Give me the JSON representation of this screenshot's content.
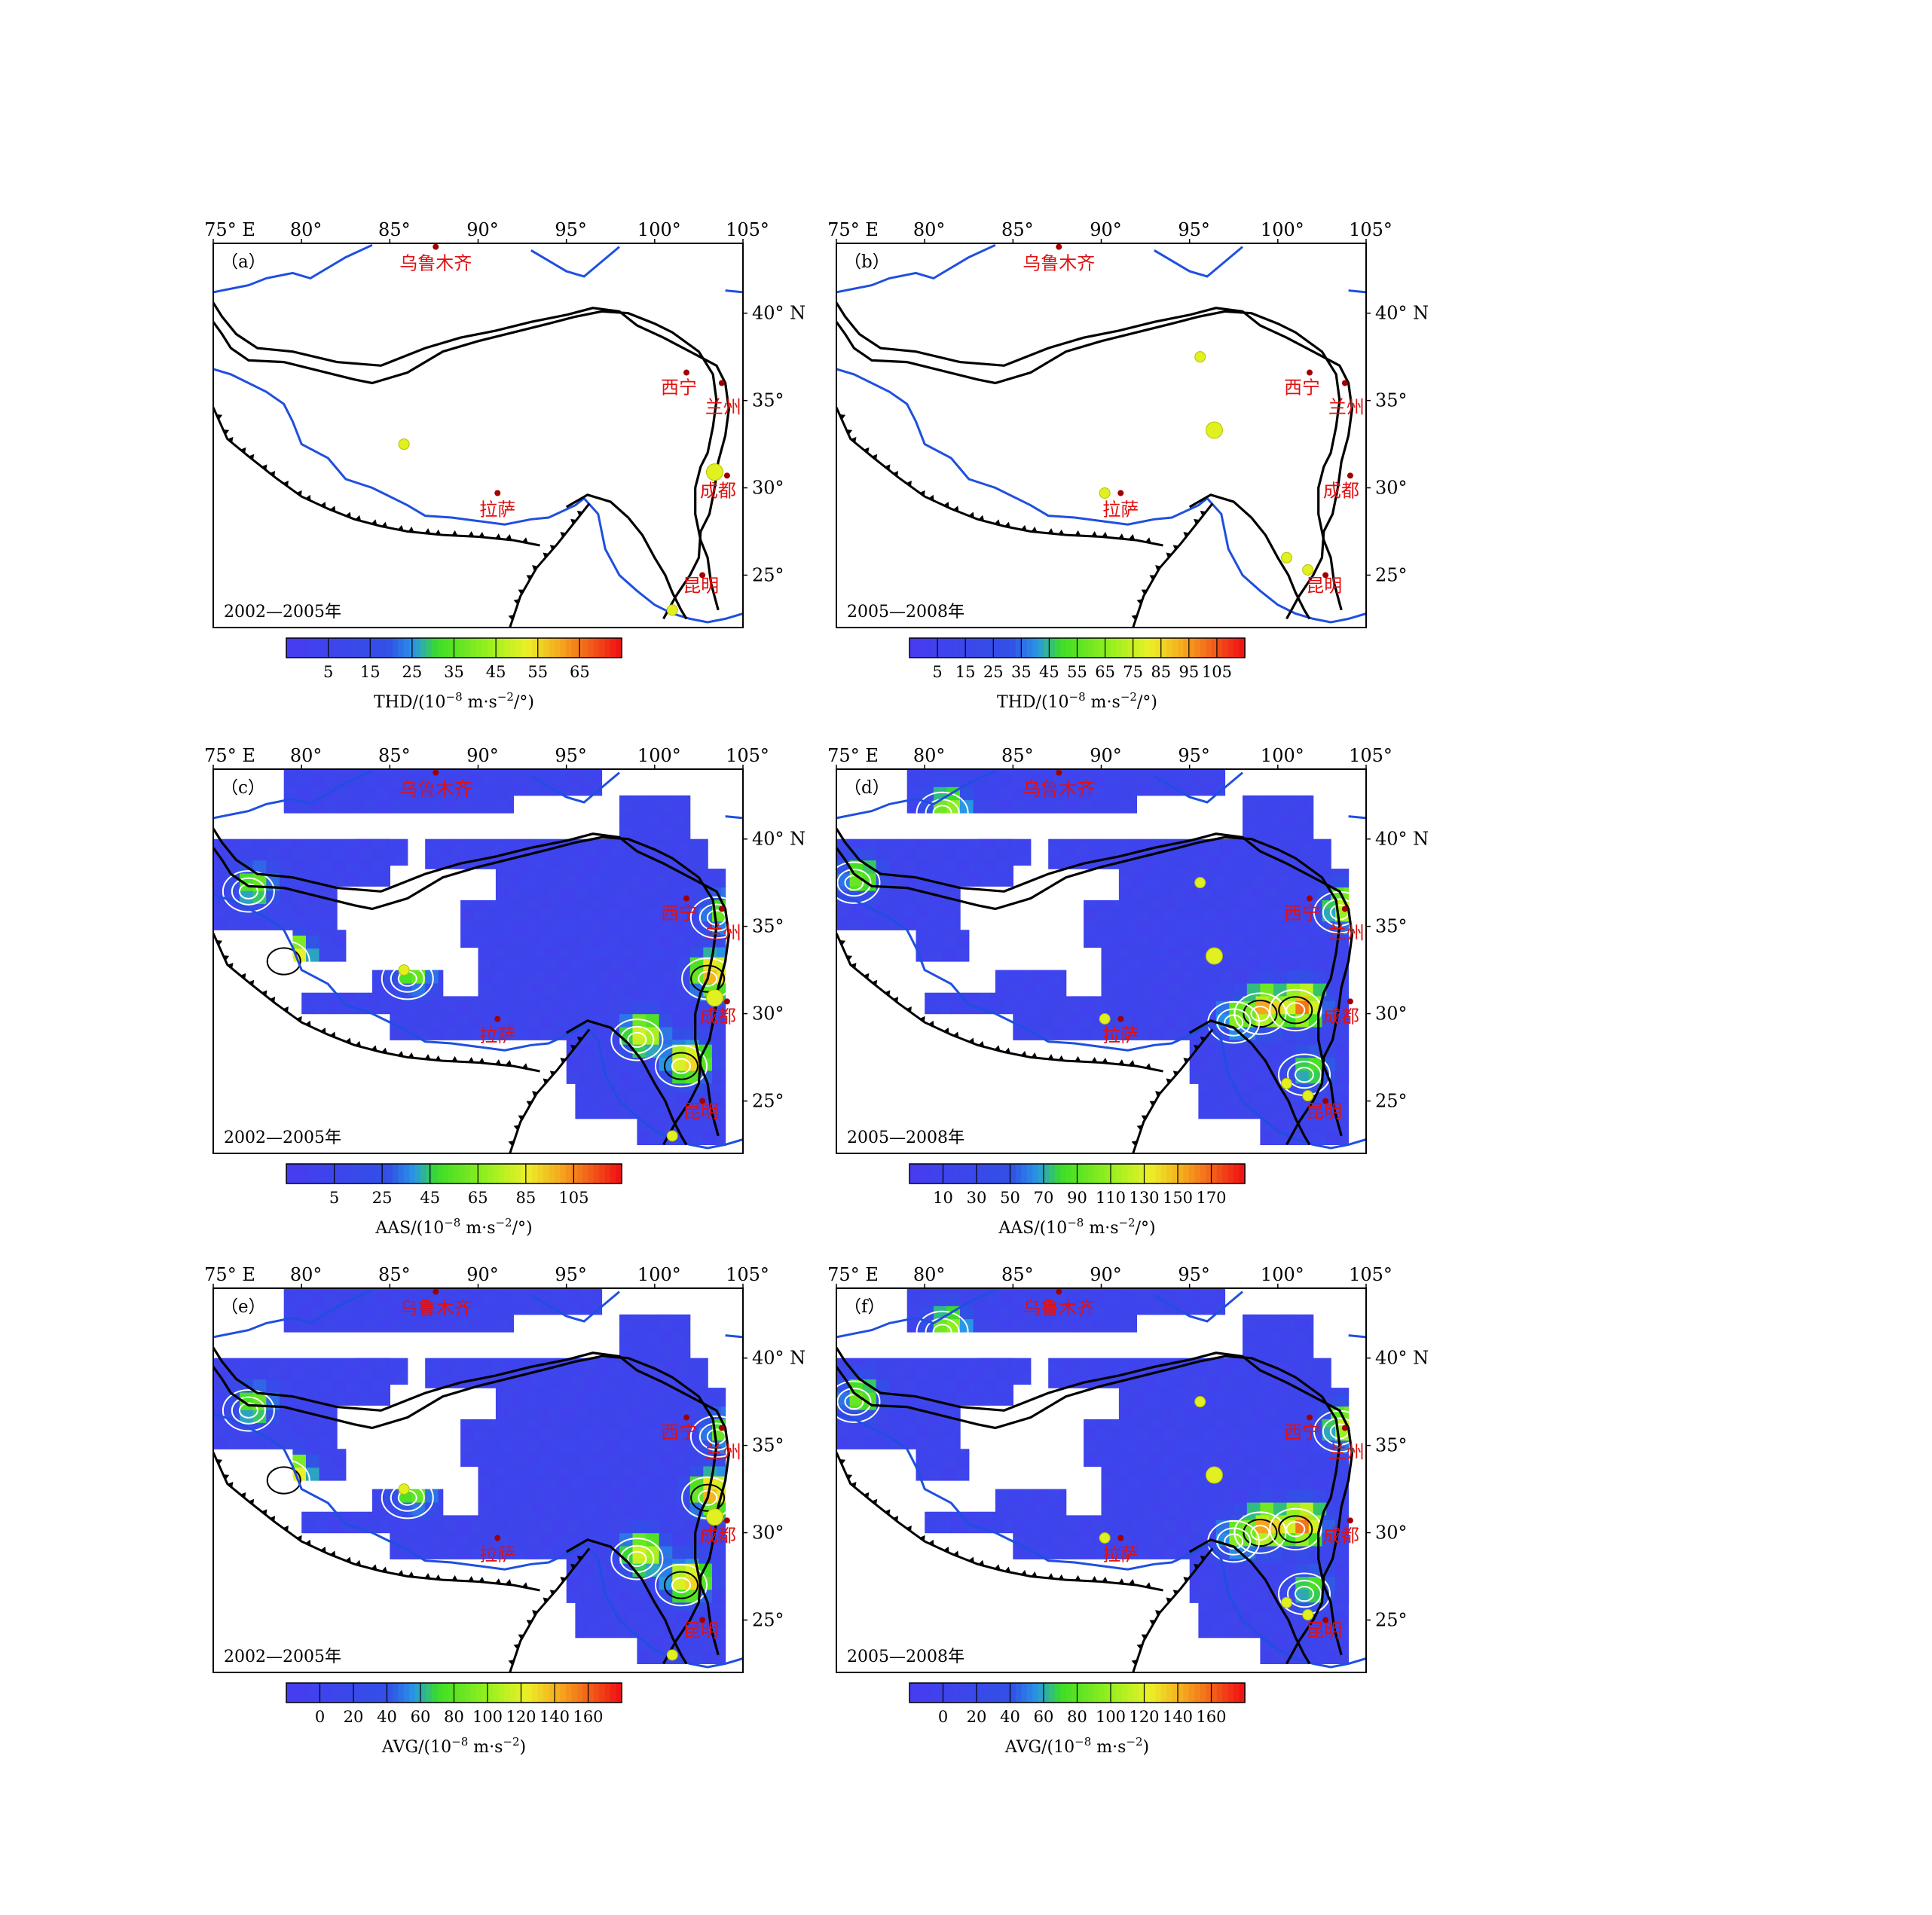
{
  "figure": {
    "lon_ticks": [
      "75° E",
      "80°",
      "85°",
      "90°",
      "95°",
      "100°",
      "105°"
    ],
    "lat_ticks": [
      "40° N",
      "35°",
      "30°",
      "25°"
    ],
    "colors": {
      "frame": "#000000",
      "river": "#1f4fe0",
      "fault": "#000000",
      "city_label": "#e01010",
      "city_dot": "#a00000",
      "station": "#e0f020",
      "grid_blue": "#3c4fe8",
      "grid_green": "#40d010",
      "grid_yellow": "#e8f030",
      "grid_red": "#f03010",
      "contour": "#ffffff"
    },
    "cities": [
      {
        "name": "乌鲁木齐",
        "lon": 87.6,
        "lat": 43.8
      },
      {
        "name": "西宁",
        "lon": 101.8,
        "lat": 36.6
      },
      {
        "name": "兰州",
        "lon": 103.8,
        "lat": 36.0
      },
      {
        "name": "拉萨",
        "lon": 91.1,
        "lat": 29.7
      },
      {
        "name": "成都",
        "lon": 104.1,
        "lat": 30.7
      },
      {
        "name": "昆明",
        "lon": 102.7,
        "lat": 25.0
      }
    ]
  },
  "panels": [
    {
      "id": "a",
      "label": "（a）",
      "period": "2002—2005年",
      "kind": "stations",
      "colorbar": {
        "ticks": [
          "5",
          "15",
          "25",
          "35",
          "45",
          "55",
          "65"
        ],
        "title": "THD/(10",
        "unit": "m·s",
        "tail": "/°)",
        "exp1": "−8",
        "exp2": "−2"
      },
      "stations": [
        {
          "lon": 85.8,
          "lat": 32.5,
          "size": 1
        },
        {
          "lon": 103.4,
          "lat": 30.9,
          "size": 2
        },
        {
          "lon": 101.0,
          "lat": 23.0,
          "size": 1
        }
      ]
    },
    {
      "id": "b",
      "label": "（b）",
      "period": "2005—2008年",
      "kind": "stations",
      "colorbar": {
        "ticks": [
          "5",
          "15",
          "25",
          "35",
          "45",
          "55",
          "65",
          "75",
          "85",
          "95",
          "105"
        ],
        "title": "THD/(10",
        "unit": "m·s",
        "tail": "/°)",
        "exp1": "−8",
        "exp2": "−2"
      },
      "stations": [
        {
          "lon": 95.6,
          "lat": 37.5,
          "size": 1
        },
        {
          "lon": 96.4,
          "lat": 33.3,
          "size": 2
        },
        {
          "lon": 90.2,
          "lat": 29.7,
          "size": 1
        },
        {
          "lon": 100.5,
          "lat": 26.0,
          "size": 1
        },
        {
          "lon": 101.7,
          "lat": 25.3,
          "size": 1
        }
      ]
    },
    {
      "id": "c",
      "label": "（c）",
      "period": "2002—2005年",
      "kind": "grid",
      "colorbar": {
        "ticks": [
          "5",
          "25",
          "45",
          "65",
          "85",
          "105"
        ],
        "title": "AAS/(10",
        "unit": "m·s",
        "tail": "/°)",
        "exp1": "−8",
        "exp2": "−2"
      },
      "stations": [
        {
          "lon": 85.8,
          "lat": 32.5,
          "size": 1
        },
        {
          "lon": 103.4,
          "lat": 30.9,
          "size": 2
        },
        {
          "lon": 101.0,
          "lat": 23.0,
          "size": 1
        }
      ]
    },
    {
      "id": "d",
      "label": "（d）",
      "period": "2005—2008年",
      "kind": "grid",
      "colorbar": {
        "ticks": [
          "10",
          "30",
          "50",
          "70",
          "90",
          "110",
          "130",
          "150",
          "170"
        ],
        "title": "AAS/(10",
        "unit": "m·s",
        "tail": "/°)",
        "exp1": "−8",
        "exp2": "−2"
      },
      "stations": [
        {
          "lon": 95.6,
          "lat": 37.5,
          "size": 1
        },
        {
          "lon": 96.4,
          "lat": 33.3,
          "size": 2
        },
        {
          "lon": 90.2,
          "lat": 29.7,
          "size": 1
        },
        {
          "lon": 100.5,
          "lat": 26.0,
          "size": 1
        },
        {
          "lon": 101.7,
          "lat": 25.3,
          "size": 1
        }
      ]
    },
    {
      "id": "e",
      "label": "（e）",
      "period": "2002—2005年",
      "kind": "grid",
      "colorbar": {
        "ticks": [
          "0",
          "20",
          "40",
          "60",
          "80",
          "100",
          "120",
          "140",
          "160"
        ],
        "title": "AVG/(10",
        "unit": "m·s",
        "tail": ")",
        "exp1": "−8",
        "exp2": "−2"
      },
      "stations": [
        {
          "lon": 85.8,
          "lat": 32.5,
          "size": 1
        },
        {
          "lon": 103.4,
          "lat": 30.9,
          "size": 2
        },
        {
          "lon": 101.0,
          "lat": 23.0,
          "size": 1
        }
      ]
    },
    {
      "id": "f",
      "label": "（f）",
      "period": "2005—2008年",
      "kind": "grid",
      "colorbar": {
        "ticks": [
          "0",
          "20",
          "40",
          "60",
          "80",
          "100",
          "120",
          "140",
          "160"
        ],
        "title": "AVG/(10",
        "unit": "m·s",
        "tail": ")",
        "exp1": "−8",
        "exp2": "−2"
      },
      "stations": [
        {
          "lon": 95.6,
          "lat": 37.5,
          "size": 1
        },
        {
          "lon": 96.4,
          "lat": 33.3,
          "size": 2
        },
        {
          "lon": 90.2,
          "lat": 29.7,
          "size": 1
        },
        {
          "lon": 100.5,
          "lat": 26.0,
          "size": 1
        },
        {
          "lon": 101.7,
          "lat": 25.3,
          "size": 1
        }
      ]
    }
  ]
}
